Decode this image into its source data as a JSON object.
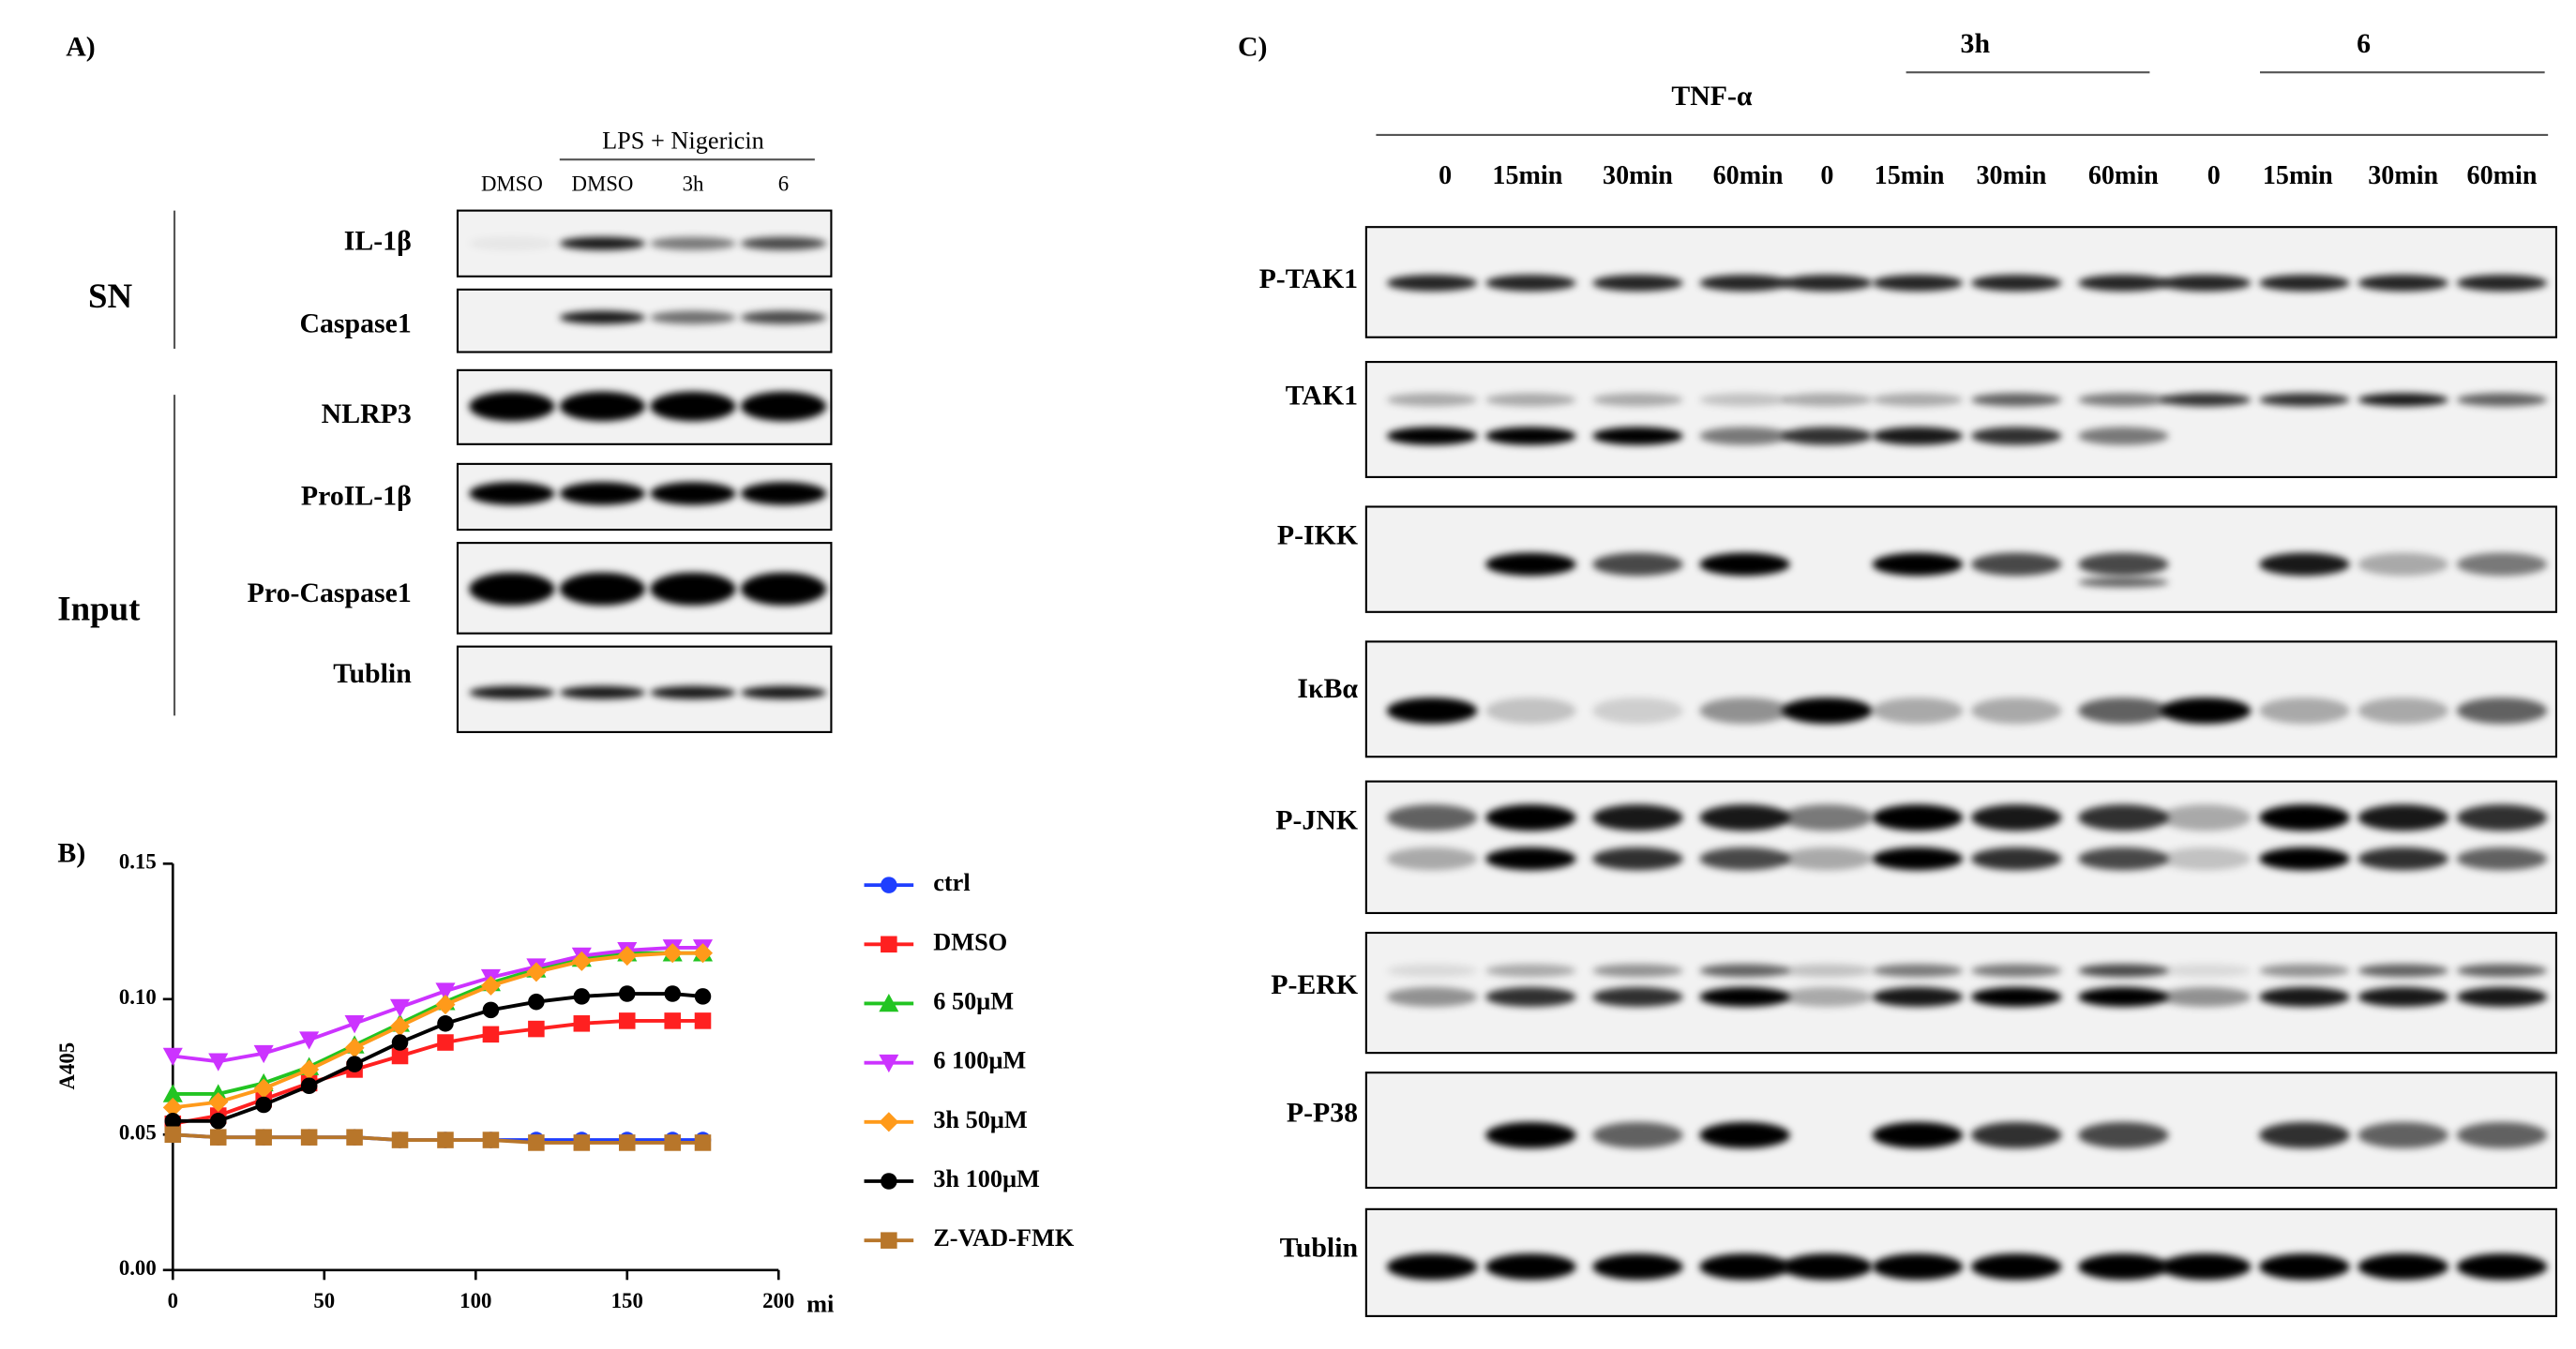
{
  "panel_a": {
    "label": "A)",
    "treatment": "LPS + Nigericin",
    "lanes": [
      "DMSO",
      "DMSO",
      "3h",
      "6"
    ],
    "groups": [
      "SN",
      "Input"
    ],
    "rows": [
      "IL-1β",
      "Caspase1",
      "NLRP3",
      "ProIL-1β",
      "Pro-Caspase1",
      "Tublin"
    ]
  },
  "chart_data": {
    "type": "line",
    "panel_label": "B)",
    "x_label": "mi",
    "y_label": "A405",
    "x": [
      0,
      15,
      30,
      45,
      60,
      75,
      90,
      105,
      120,
      135,
      150,
      165,
      175
    ],
    "xlim": [
      0,
      200
    ],
    "xticks": [
      0,
      50,
      100,
      150,
      200
    ],
    "ylim": [
      0,
      0.15
    ],
    "yticks": [
      {
        "value": 0,
        "label": "0.00"
      },
      0.05,
      {
        "value": 0.1,
        "label": "0.10"
      },
      0.15
    ],
    "series": [
      {
        "name": "ctrl",
        "color": "#1f3fff",
        "marker": "circle",
        "values": [
          0.05,
          0.049,
          0.049,
          0.049,
          0.049,
          0.048,
          0.048,
          0.048,
          0.048,
          0.048,
          0.048,
          0.048,
          0.048
        ]
      },
      {
        "name": "DMSO",
        "color": "#ff2020",
        "marker": "square",
        "values": [
          0.054,
          0.057,
          0.063,
          0.069,
          0.074,
          0.079,
          0.084,
          0.087,
          0.089,
          0.091,
          0.092,
          0.092,
          0.092
        ]
      },
      {
        "name": "6 50μM",
        "color": "#22c422",
        "marker": "triangle",
        "values": [
          0.065,
          0.065,
          0.069,
          0.075,
          0.083,
          0.091,
          0.099,
          0.106,
          0.111,
          0.115,
          0.117,
          0.117,
          0.117
        ]
      },
      {
        "name": "6 100μM",
        "color": "#cc33ff",
        "marker": "triangle-down",
        "values": [
          0.079,
          0.077,
          0.08,
          0.085,
          0.091,
          0.097,
          0.103,
          0.108,
          0.112,
          0.116,
          0.118,
          0.119,
          0.119
        ]
      },
      {
        "name": "3h 50μM",
        "color": "#ff9a1a",
        "marker": "diamond",
        "values": [
          0.06,
          0.062,
          0.067,
          0.074,
          0.082,
          0.09,
          0.098,
          0.105,
          0.11,
          0.114,
          0.116,
          0.117,
          0.117
        ]
      },
      {
        "name": "3h 100μM",
        "color": "#000000",
        "marker": "circle",
        "values": [
          0.055,
          0.055,
          0.061,
          0.068,
          0.076,
          0.084,
          0.091,
          0.096,
          0.099,
          0.101,
          0.102,
          0.102,
          0.101
        ]
      },
      {
        "name": "Z-VAD-FMK",
        "color": "#b8762a",
        "marker": "square",
        "values": [
          0.05,
          0.049,
          0.049,
          0.049,
          0.049,
          0.048,
          0.048,
          0.048,
          0.047,
          0.047,
          0.047,
          0.047,
          0.047
        ]
      }
    ]
  },
  "panel_c": {
    "label": "C)",
    "treatment": "TNF-α",
    "groups": [
      "3h",
      "6"
    ],
    "lanes": [
      "0",
      "15min",
      "30min",
      "60min",
      "0",
      "15min",
      "30min",
      "60min",
      "0",
      "15min",
      "30min",
      "60min"
    ],
    "rows": [
      "P-TAK1",
      "TAK1",
      "P-IKK",
      "IκBα",
      "P-JNK",
      "P-ERK",
      "P-P38",
      "Tublin"
    ]
  }
}
